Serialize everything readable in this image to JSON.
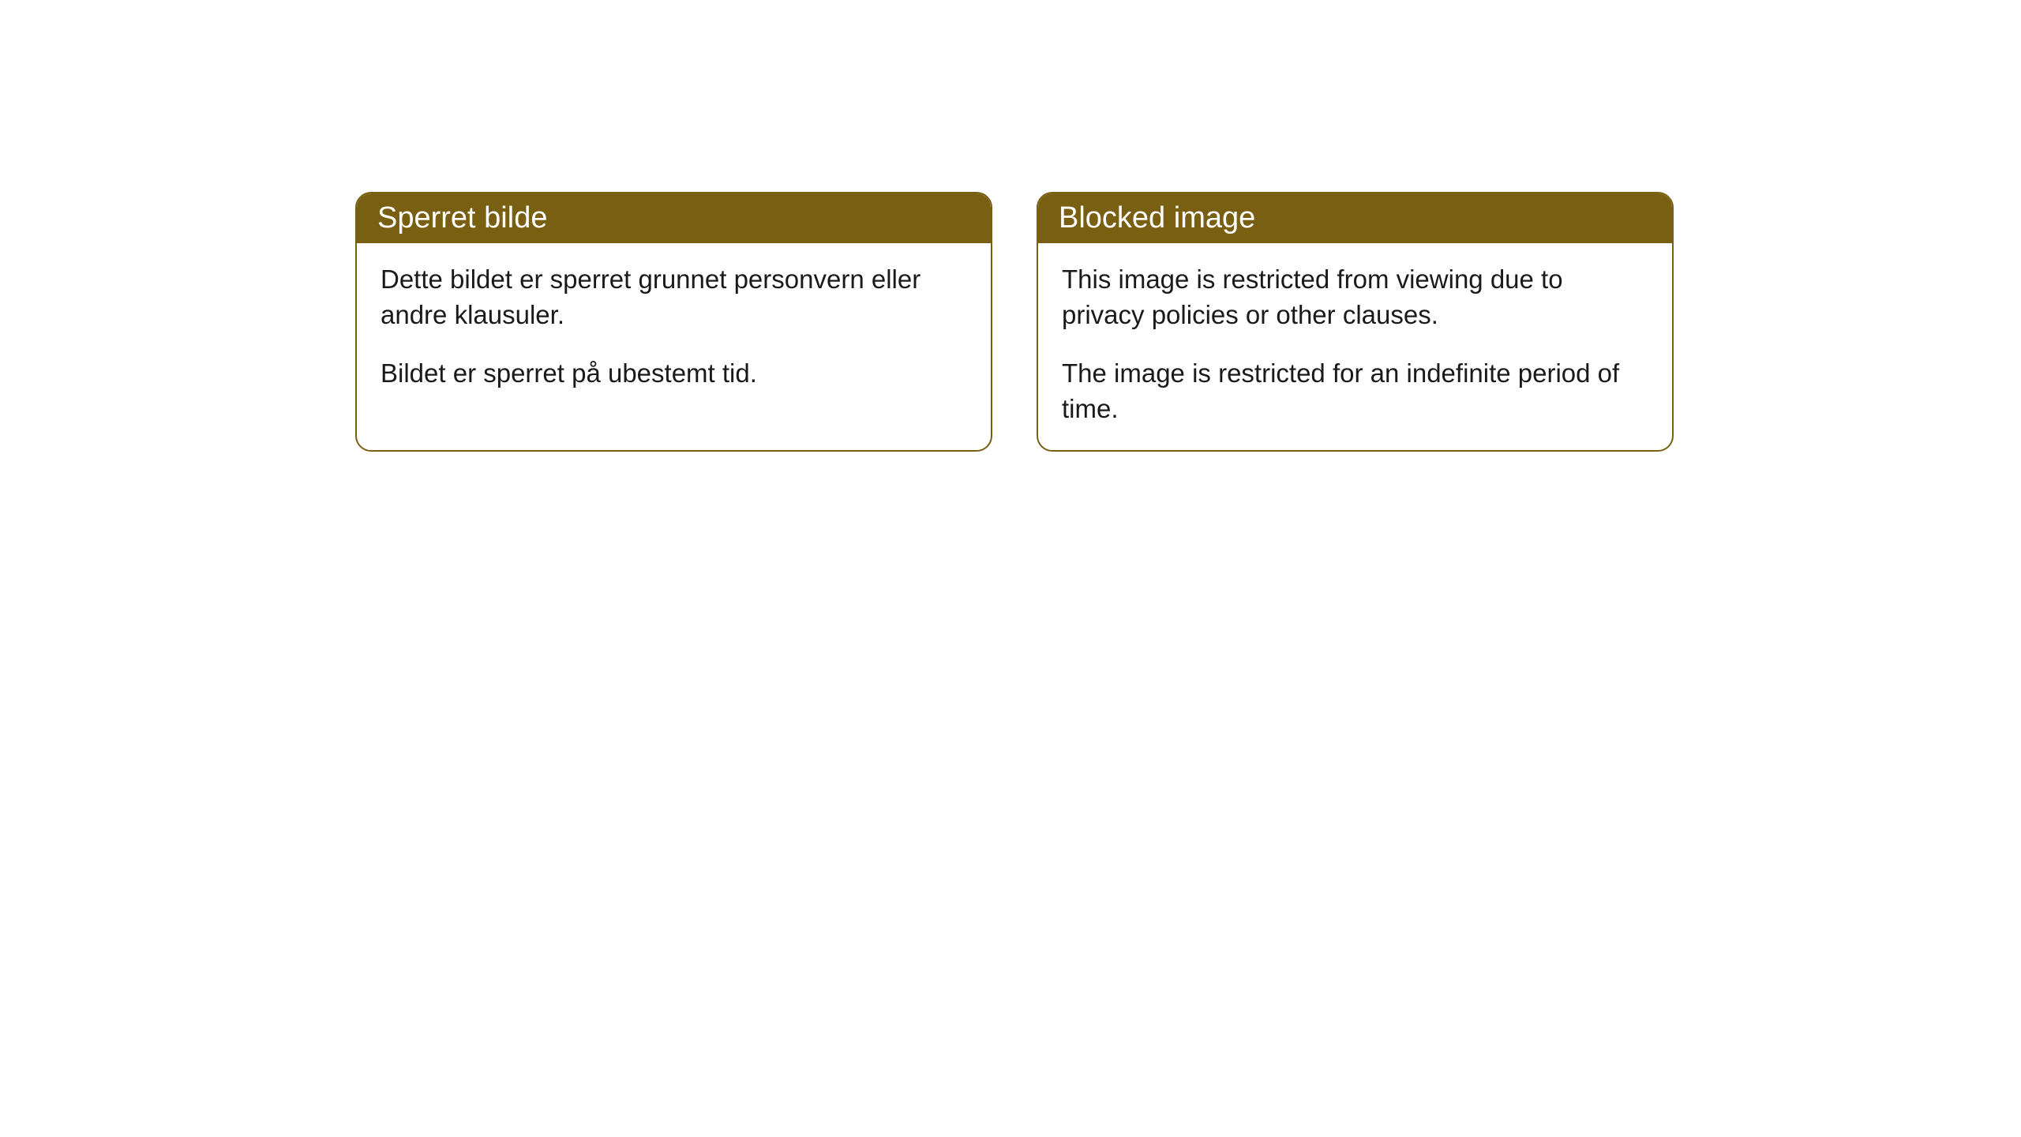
{
  "cards": [
    {
      "title": "Sperret bilde",
      "paragraph1": "Dette bildet er sperret grunnet personvern eller andre klausuler.",
      "paragraph2": "Bildet er sperret på ubestemt tid."
    },
    {
      "title": "Blocked image",
      "paragraph1": "This image is restricted from viewing due to privacy policies or other clauses.",
      "paragraph2": "The image is restricted for an indefinite period of time."
    }
  ],
  "style": {
    "header_background": "#795f11",
    "header_text_color": "#ffffff",
    "border_color": "#795f11",
    "body_text_color": "#1a1a1a",
    "page_background": "#ffffff",
    "border_radius": 20,
    "title_fontsize": 38,
    "body_fontsize": 33
  }
}
